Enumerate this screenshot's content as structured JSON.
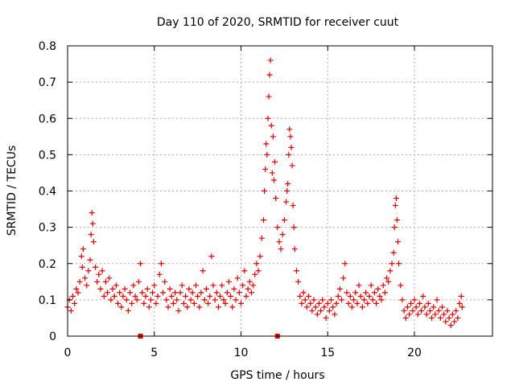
{
  "chart_data": {
    "type": "scatter",
    "title": "Day 110 of 2020, SRMTID for receiver cuut",
    "xlabel": "GPS time / hours",
    "ylabel": "SRMTID / TECUs",
    "xlim": [
      0,
      24.5
    ],
    "ylim": [
      0,
      0.8
    ],
    "xticks": [
      0,
      5,
      10,
      15,
      20
    ],
    "xtick_labels": [
      "0",
      "5",
      "10",
      "15",
      "20"
    ],
    "yticks": [
      0,
      0.1,
      0.2,
      0.3,
      0.4,
      0.5,
      0.6,
      0.7,
      0.8
    ],
    "ytick_labels": [
      "0",
      "0.1",
      "0.2",
      "0.3",
      "0.4",
      "0.5",
      "0.6",
      "0.7",
      "0.8"
    ],
    "grid": true,
    "marker": "plus",
    "color": "#e00000",
    "series": [
      {
        "name": "SRMTID",
        "points": [
          [
            0.0,
            0.08
          ],
          [
            0.1,
            0.1
          ],
          [
            0.2,
            0.07
          ],
          [
            0.3,
            0.11
          ],
          [
            0.4,
            0.09
          ],
          [
            0.5,
            0.13
          ],
          [
            0.6,
            0.12
          ],
          [
            0.7,
            0.15
          ],
          [
            0.8,
            0.22
          ],
          [
            0.85,
            0.19
          ],
          [
            0.9,
            0.24
          ],
          [
            1.0,
            0.16
          ],
          [
            1.1,
            0.14
          ],
          [
            1.2,
            0.18
          ],
          [
            1.3,
            0.21
          ],
          [
            1.35,
            0.28
          ],
          [
            1.4,
            0.34
          ],
          [
            1.45,
            0.31
          ],
          [
            1.5,
            0.26
          ],
          [
            1.6,
            0.19
          ],
          [
            1.7,
            0.15
          ],
          [
            1.8,
            0.17
          ],
          [
            1.9,
            0.13
          ],
          [
            2.0,
            0.18
          ],
          [
            2.1,
            0.11
          ],
          [
            2.2,
            0.15
          ],
          [
            2.3,
            0.12
          ],
          [
            2.4,
            0.16
          ],
          [
            2.5,
            0.1
          ],
          [
            2.6,
            0.13
          ],
          [
            2.7,
            0.11
          ],
          [
            2.8,
            0.14
          ],
          [
            2.9,
            0.09
          ],
          [
            3.0,
            0.12
          ],
          [
            3.1,
            0.08
          ],
          [
            3.2,
            0.11
          ],
          [
            3.3,
            0.13
          ],
          [
            3.4,
            0.1
          ],
          [
            3.5,
            0.07
          ],
          [
            3.6,
            0.12
          ],
          [
            3.7,
            0.09
          ],
          [
            3.8,
            0.14
          ],
          [
            3.9,
            0.11
          ],
          [
            4.0,
            0.1
          ],
          [
            4.1,
            0.15
          ],
          [
            4.2,
            0.2
          ],
          [
            4.3,
            0.12
          ],
          [
            4.4,
            0.09
          ],
          [
            4.5,
            0.11
          ],
          [
            4.6,
            0.13
          ],
          [
            4.7,
            0.08
          ],
          [
            4.8,
            0.1
          ],
          [
            4.9,
            0.12
          ],
          [
            5.0,
            0.14
          ],
          [
            5.1,
            0.09
          ],
          [
            5.2,
            0.11
          ],
          [
            5.3,
            0.17
          ],
          [
            5.4,
            0.2
          ],
          [
            5.5,
            0.12
          ],
          [
            5.6,
            0.15
          ],
          [
            5.7,
            0.1
          ],
          [
            5.8,
            0.08
          ],
          [
            5.9,
            0.13
          ],
          [
            6.0,
            0.11
          ],
          [
            6.1,
            0.09
          ],
          [
            6.2,
            0.12
          ],
          [
            6.3,
            0.1
          ],
          [
            6.4,
            0.07
          ],
          [
            6.5,
            0.12
          ],
          [
            6.6,
            0.14
          ],
          [
            6.7,
            0.09
          ],
          [
            6.8,
            0.11
          ],
          [
            6.9,
            0.08
          ],
          [
            7.0,
            0.13
          ],
          [
            7.1,
            0.1
          ],
          [
            7.2,
            0.12
          ],
          [
            7.3,
            0.09
          ],
          [
            7.4,
            0.14
          ],
          [
            7.5,
            0.11
          ],
          [
            7.6,
            0.08
          ],
          [
            7.7,
            0.12
          ],
          [
            7.8,
            0.18
          ],
          [
            7.9,
            0.1
          ],
          [
            8.0,
            0.13
          ],
          [
            8.1,
            0.09
          ],
          [
            8.2,
            0.11
          ],
          [
            8.3,
            0.22
          ],
          [
            8.4,
            0.14
          ],
          [
            8.5,
            0.1
          ],
          [
            8.6,
            0.12
          ],
          [
            8.7,
            0.08
          ],
          [
            8.8,
            0.11
          ],
          [
            8.9,
            0.14
          ],
          [
            9.0,
            0.1
          ],
          [
            9.1,
            0.09
          ],
          [
            9.2,
            0.12
          ],
          [
            9.3,
            0.15
          ],
          [
            9.4,
            0.11
          ],
          [
            9.5,
            0.08
          ],
          [
            9.6,
            0.13
          ],
          [
            9.7,
            0.1
          ],
          [
            9.8,
            0.16
          ],
          [
            9.9,
            0.12
          ],
          [
            10.0,
            0.09
          ],
          [
            10.1,
            0.14
          ],
          [
            10.2,
            0.18
          ],
          [
            10.3,
            0.11
          ],
          [
            10.4,
            0.13
          ],
          [
            10.5,
            0.15
          ],
          [
            10.6,
            0.12
          ],
          [
            10.7,
            0.14
          ],
          [
            10.8,
            0.17
          ],
          [
            10.9,
            0.2
          ],
          [
            11.0,
            0.18
          ],
          [
            11.1,
            0.22
          ],
          [
            11.2,
            0.27
          ],
          [
            11.3,
            0.32
          ],
          [
            11.35,
            0.4
          ],
          [
            11.4,
            0.46
          ],
          [
            11.45,
            0.53
          ],
          [
            11.5,
            0.5
          ],
          [
            11.55,
            0.6
          ],
          [
            11.6,
            0.66
          ],
          [
            11.65,
            0.72
          ],
          [
            11.7,
            0.76
          ],
          [
            11.75,
            0.58
          ],
          [
            11.8,
            0.45
          ],
          [
            11.85,
            0.55
          ],
          [
            11.9,
            0.43
          ],
          [
            11.95,
            0.48
          ],
          [
            12.0,
            0.38
          ],
          [
            12.1,
            0.3
          ],
          [
            12.2,
            0.26
          ],
          [
            12.3,
            0.24
          ],
          [
            12.4,
            0.28
          ],
          [
            12.5,
            0.32
          ],
          [
            12.6,
            0.37
          ],
          [
            12.65,
            0.4
          ],
          [
            12.7,
            0.42
          ],
          [
            12.75,
            0.5
          ],
          [
            12.8,
            0.57
          ],
          [
            12.85,
            0.55
          ],
          [
            12.9,
            0.52
          ],
          [
            12.95,
            0.47
          ],
          [
            13.0,
            0.36
          ],
          [
            13.05,
            0.3
          ],
          [
            13.1,
            0.24
          ],
          [
            13.2,
            0.18
          ],
          [
            13.3,
            0.15
          ],
          [
            13.4,
            0.11
          ],
          [
            13.5,
            0.09
          ],
          [
            13.6,
            0.12
          ],
          [
            13.7,
            0.1
          ],
          [
            13.8,
            0.08
          ],
          [
            13.9,
            0.11
          ],
          [
            14.0,
            0.09
          ],
          [
            14.1,
            0.07
          ],
          [
            14.2,
            0.1
          ],
          [
            14.3,
            0.08
          ],
          [
            14.4,
            0.06
          ],
          [
            14.5,
            0.09
          ],
          [
            14.6,
            0.07
          ],
          [
            14.7,
            0.1
          ],
          [
            14.8,
            0.08
          ],
          [
            14.9,
            0.05
          ],
          [
            15.0,
            0.09
          ],
          [
            15.1,
            0.07
          ],
          [
            15.2,
            0.1
          ],
          [
            15.3,
            0.08
          ],
          [
            15.4,
            0.06
          ],
          [
            15.5,
            0.09
          ],
          [
            15.6,
            0.11
          ],
          [
            15.7,
            0.13
          ],
          [
            15.8,
            0.1
          ],
          [
            15.9,
            0.16
          ],
          [
            16.0,
            0.2
          ],
          [
            16.1,
            0.12
          ],
          [
            16.2,
            0.09
          ],
          [
            16.3,
            0.11
          ],
          [
            16.4,
            0.08
          ],
          [
            16.5,
            0.1
          ],
          [
            16.6,
            0.12
          ],
          [
            16.7,
            0.09
          ],
          [
            16.8,
            0.14
          ],
          [
            16.9,
            0.11
          ],
          [
            17.0,
            0.08
          ],
          [
            17.1,
            0.1
          ],
          [
            17.2,
            0.12
          ],
          [
            17.3,
            0.09
          ],
          [
            17.4,
            0.11
          ],
          [
            17.5,
            0.14
          ],
          [
            17.6,
            0.1
          ],
          [
            17.7,
            0.12
          ],
          [
            17.8,
            0.09
          ],
          [
            17.9,
            0.13
          ],
          [
            18.0,
            0.11
          ],
          [
            18.1,
            0.1
          ],
          [
            18.2,
            0.14
          ],
          [
            18.3,
            0.12
          ],
          [
            18.4,
            0.16
          ],
          [
            18.5,
            0.15
          ],
          [
            18.6,
            0.18
          ],
          [
            18.7,
            0.2
          ],
          [
            18.8,
            0.23
          ],
          [
            18.85,
            0.3
          ],
          [
            18.9,
            0.36
          ],
          [
            18.95,
            0.38
          ],
          [
            19.0,
            0.32
          ],
          [
            19.05,
            0.26
          ],
          [
            19.1,
            0.2
          ],
          [
            19.2,
            0.14
          ],
          [
            19.3,
            0.1
          ],
          [
            19.4,
            0.07
          ],
          [
            19.5,
            0.05
          ],
          [
            19.6,
            0.08
          ],
          [
            19.7,
            0.06
          ],
          [
            19.8,
            0.09
          ],
          [
            19.9,
            0.07
          ],
          [
            20.0,
            0.1
          ],
          [
            20.1,
            0.08
          ],
          [
            20.2,
            0.06
          ],
          [
            20.3,
            0.09
          ],
          [
            20.4,
            0.07
          ],
          [
            20.5,
            0.11
          ],
          [
            20.6,
            0.08
          ],
          [
            20.7,
            0.06
          ],
          [
            20.8,
            0.09
          ],
          [
            20.9,
            0.07
          ],
          [
            21.0,
            0.05
          ],
          [
            21.1,
            0.08
          ],
          [
            21.2,
            0.06
          ],
          [
            21.3,
            0.1
          ],
          [
            21.4,
            0.07
          ],
          [
            21.5,
            0.05
          ],
          [
            21.6,
            0.08
          ],
          [
            21.7,
            0.06
          ],
          [
            21.8,
            0.04
          ],
          [
            21.9,
            0.07
          ],
          [
            22.0,
            0.05
          ],
          [
            22.1,
            0.03
          ],
          [
            22.2,
            0.06
          ],
          [
            22.3,
            0.04
          ],
          [
            22.4,
            0.07
          ],
          [
            22.5,
            0.05
          ],
          [
            22.6,
            0.09
          ],
          [
            22.7,
            0.11
          ],
          [
            22.75,
            0.08
          ]
        ]
      }
    ],
    "axis_markers": [
      {
        "x": 4.2,
        "y": 0
      },
      {
        "x": 12.1,
        "y": 0
      }
    ]
  }
}
